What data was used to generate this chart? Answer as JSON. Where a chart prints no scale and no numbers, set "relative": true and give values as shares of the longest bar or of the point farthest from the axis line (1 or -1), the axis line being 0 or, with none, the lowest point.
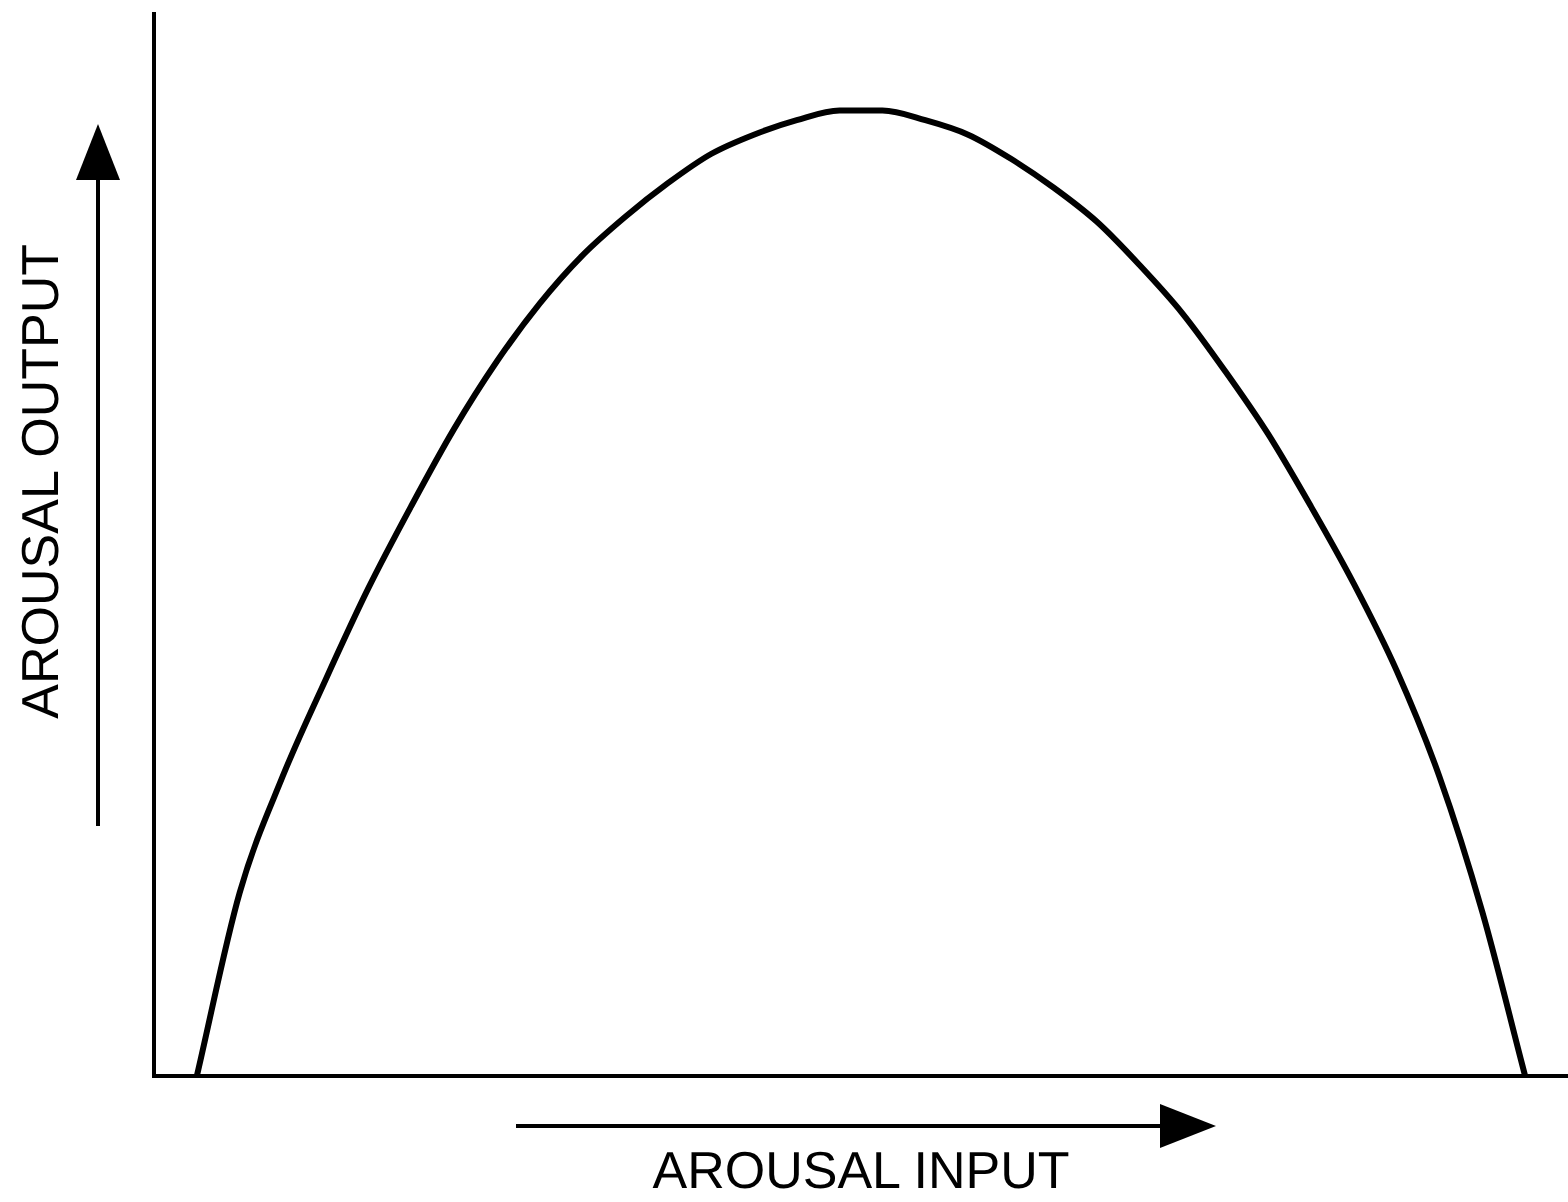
{
  "chart_data": {
    "type": "line",
    "xlabel": "AROUSAL INPUT",
    "ylabel": "AROUSAL OUTPUT",
    "relative": true,
    "categories": [
      null,
      null,
      null,
      null,
      null,
      null,
      null,
      null,
      null,
      null,
      null,
      null,
      null,
      null,
      null,
      null,
      null,
      null,
      null,
      null,
      null,
      null,
      null,
      null,
      null,
      null,
      null,
      null,
      null,
      null,
      null,
      null,
      null,
      null
    ],
    "series": [
      {
        "color": "#000000",
        "values": [
          null,
          0,
          0.19,
          0.31,
          0.41,
          0.505,
          0.59,
          0.67,
          0.74,
          0.8,
          0.85,
          0.89,
          0.925,
          0.955,
          0.975,
          0.99,
          1,
          1,
          0.99,
          0.975,
          0.95,
          0.92,
          0.885,
          0.84,
          0.79,
          0.73,
          0.665,
          0.59,
          0.51,
          0.42,
          0.31,
          0.17,
          0,
          null
        ]
      }
    ]
  }
}
